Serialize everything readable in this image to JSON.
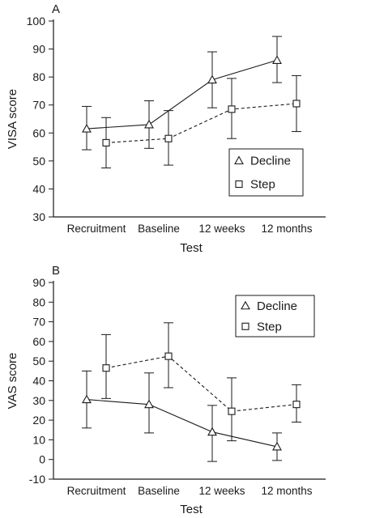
{
  "chart_data": [
    {
      "type": "line",
      "title": "A",
      "xlabel": "Test",
      "ylabel": "VISA score",
      "categories": [
        "Recruitment",
        "Baseline",
        "12 weeks",
        "12 months"
      ],
      "ylim": [
        30,
        100
      ],
      "yticks": [
        30,
        40,
        50,
        60,
        70,
        80,
        90,
        100
      ],
      "grid": false,
      "legend_position": "bottom-right",
      "series": [
        {
          "name": "Decline",
          "marker": "triangle",
          "line_style": "solid",
          "values": [
            61.5,
            63,
            79,
            86
          ],
          "err_low": [
            54,
            54.5,
            69,
            78
          ],
          "err_high": [
            69.5,
            71.5,
            89,
            94.5
          ]
        },
        {
          "name": "Step",
          "marker": "square",
          "line_style": "dashed",
          "values": [
            56.5,
            58,
            68.5,
            70.5
          ],
          "err_low": [
            47.5,
            48.5,
            58,
            60.5
          ],
          "err_high": [
            65.5,
            68,
            79.5,
            80.5
          ]
        }
      ]
    },
    {
      "type": "line",
      "title": "B",
      "xlabel": "Test",
      "ylabel": "VAS score",
      "categories": [
        "Recruitment",
        "Baseline",
        "12 weeks",
        "12 months"
      ],
      "ylim": [
        -10,
        90
      ],
      "yticks": [
        -10,
        0,
        10,
        20,
        30,
        40,
        50,
        60,
        70,
        80,
        90
      ],
      "grid": false,
      "legend_position": "top-right",
      "series": [
        {
          "name": "Decline",
          "marker": "triangle",
          "line_style": "solid",
          "values": [
            30.5,
            28,
            14,
            6.5
          ],
          "err_low": [
            16,
            13.5,
            -1,
            -0.5
          ],
          "err_high": [
            45,
            44,
            27.5,
            13.5
          ]
        },
        {
          "name": "Step",
          "marker": "square",
          "line_style": "dashed",
          "values": [
            46.5,
            52.5,
            24.5,
            28
          ],
          "err_low": [
            31,
            36.5,
            9.5,
            19
          ],
          "err_high": [
            63.5,
            69.5,
            41.5,
            38
          ]
        }
      ]
    }
  ]
}
